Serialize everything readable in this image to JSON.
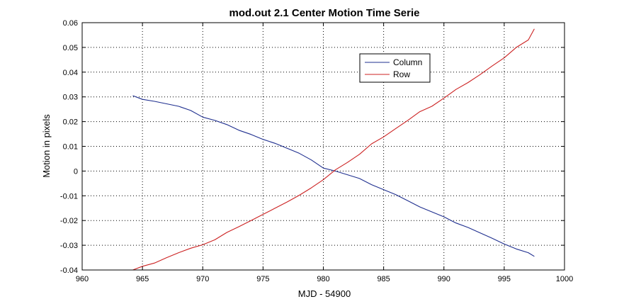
{
  "chart_data": {
    "type": "line",
    "title": "mod.out 2.1 Center Motion Time Serie",
    "xlabel": "MJD - 54900",
    "ylabel": "Motion in pixels",
    "xlim": [
      960,
      1000
    ],
    "ylim": [
      -0.04,
      0.06
    ],
    "xticks": [
      "960",
      "965",
      "970",
      "975",
      "980",
      "985",
      "990",
      "995",
      "1000"
    ],
    "yticks": [
      "-0.04",
      "-0.03",
      "-0.02",
      "-0.01",
      "0",
      "0.01",
      "0.02",
      "0.03",
      "0.04",
      "0.05",
      "0.06"
    ],
    "grid": true,
    "legend_position": "top-right",
    "series": [
      {
        "name": "Column",
        "color": "#1f2f8f",
        "x": [
          964.2,
          965,
          966,
          967,
          968,
          969,
          970,
          971,
          972,
          973,
          974,
          975,
          976,
          977,
          978,
          979,
          980,
          981,
          982,
          983,
          984,
          985,
          986,
          987,
          988,
          989,
          990,
          991,
          992,
          993,
          994,
          995,
          996,
          997,
          997.5
        ],
        "y": [
          0.0305,
          0.029,
          0.0282,
          0.0272,
          0.0262,
          0.0245,
          0.0218,
          0.0205,
          0.0188,
          0.0165,
          0.0148,
          0.0128,
          0.0112,
          0.0092,
          0.0072,
          0.0045,
          0.0012,
          0.0,
          -0.0015,
          -0.003,
          -0.0055,
          -0.0075,
          -0.0095,
          -0.012,
          -0.0145,
          -0.0165,
          -0.0185,
          -0.021,
          -0.0228,
          -0.025,
          -0.0272,
          -0.0295,
          -0.0315,
          -0.033,
          -0.0345
        ]
      },
      {
        "name": "Row",
        "color": "#cc2222",
        "x": [
          964.2,
          965,
          966,
          967,
          968,
          969,
          970,
          971,
          972,
          973,
          974,
          975,
          976,
          977,
          978,
          979,
          980,
          981,
          982,
          983,
          984,
          985,
          986,
          987,
          988,
          989,
          990,
          991,
          992,
          993,
          994,
          995,
          996,
          997,
          997.5
        ],
        "y": [
          -0.04,
          -0.0385,
          -0.0372,
          -0.035,
          -0.033,
          -0.0312,
          -0.0298,
          -0.0278,
          -0.0248,
          -0.0225,
          -0.02,
          -0.0175,
          -0.015,
          -0.0125,
          -0.0098,
          -0.0068,
          -0.0035,
          0.0005,
          0.0035,
          0.0068,
          0.011,
          0.0138,
          0.0172,
          0.0205,
          0.024,
          0.0262,
          0.0295,
          0.033,
          0.0358,
          0.039,
          0.0425,
          0.0458,
          0.05,
          0.053,
          0.0575
        ]
      }
    ]
  }
}
